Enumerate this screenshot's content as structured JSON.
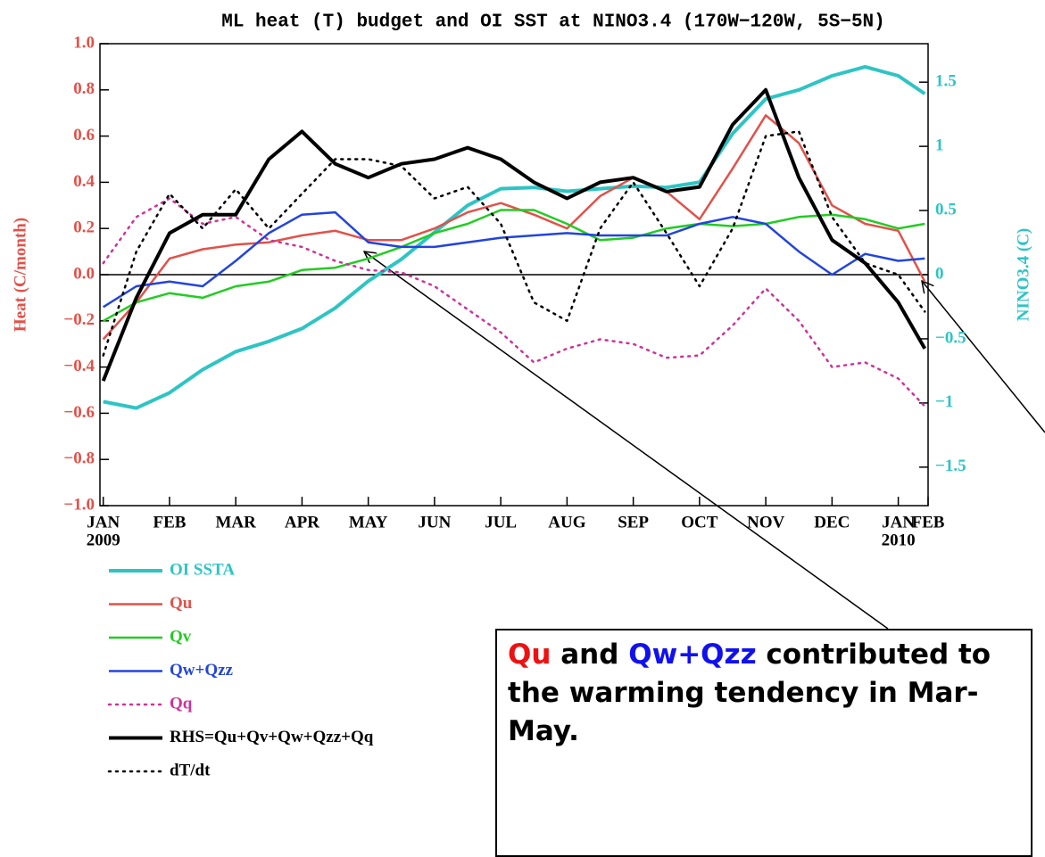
{
  "chart_data": {
    "type": "line",
    "title": "ML heat (T) budget and OI SST at NINO3.4 (170W−120W, 5S−5N)",
    "ylabel": "Heat (C/month)",
    "y2label": "NINO3.4 (C)",
    "x": [
      0,
      0.5,
      1,
      1.5,
      2,
      2.5,
      3,
      3.5,
      4,
      4.5,
      5,
      5.5,
      6,
      6.5,
      7,
      7.5,
      8,
      8.5,
      9,
      9.5,
      10,
      10.5,
      11,
      11.5,
      12,
      12.4
    ],
    "xlim": [
      -0.05,
      12.45
    ],
    "xticks": [
      {
        "value": 0,
        "label": "JAN"
      },
      {
        "value": 1,
        "label": "FEB"
      },
      {
        "value": 2,
        "label": "MAR"
      },
      {
        "value": 3,
        "label": "APR"
      },
      {
        "value": 4,
        "label": "MAY"
      },
      {
        "value": 5,
        "label": "JUN"
      },
      {
        "value": 6,
        "label": "JUL"
      },
      {
        "value": 7,
        "label": "AUG"
      },
      {
        "value": 8,
        "label": "SEP"
      },
      {
        "value": 9,
        "label": "OCT"
      },
      {
        "value": 10,
        "label": "NOV"
      },
      {
        "value": 11,
        "label": "DEC"
      },
      {
        "value": 12,
        "label": "JAN"
      },
      {
        "value": 12.45,
        "label": "FEB"
      }
    ],
    "x_year_labels": [
      {
        "value": 0,
        "label": "2009"
      },
      {
        "value": 12,
        "label": "2010"
      }
    ],
    "ylim": [
      -1,
      1
    ],
    "yticks": [
      {
        "value": 1,
        "label": "1.0"
      },
      {
        "value": 0.8,
        "label": "0.8"
      },
      {
        "value": 0.6,
        "label": "0.6"
      },
      {
        "value": 0.4,
        "label": "0.4"
      },
      {
        "value": 0.2,
        "label": "0.2"
      },
      {
        "value": 0,
        "label": "0.0"
      },
      {
        "value": -0.2,
        "label": "−0.2"
      },
      {
        "value": -0.4,
        "label": "−0.4"
      },
      {
        "value": -0.6,
        "label": "−0.6"
      },
      {
        "value": -0.8,
        "label": "−0.8"
      },
      {
        "value": -1,
        "label": "−1.0"
      }
    ],
    "y2lim": [
      -1.8,
      1.8
    ],
    "y2ticks": [
      1.5,
      1,
      0.5,
      0,
      {
        "value": -0.5,
        "label": "−0.5"
      },
      {
        "value": -1,
        "label": "−1"
      },
      {
        "value": -1.5,
        "label": "−1.5"
      }
    ],
    "hline": 0,
    "legend": "below",
    "series": [
      {
        "name": "OI SSTA",
        "color": "#2ec4c4",
        "width": 4,
        "axis": "y2",
        "values": [
          -0.99,
          -1.04,
          -0.92,
          -0.74,
          -0.6,
          -0.52,
          -0.42,
          -0.26,
          -0.05,
          0.12,
          0.33,
          0.54,
          0.67,
          0.68,
          0.65,
          0.67,
          0.69,
          0.68,
          0.72,
          1.1,
          1.37,
          1.44,
          1.55,
          1.62,
          1.55,
          1.41
        ]
      },
      {
        "name": "Qu",
        "color": "#e0524a",
        "width": 2.5,
        "values": [
          -0.28,
          -0.12,
          0.07,
          0.11,
          0.13,
          0.14,
          0.17,
          0.19,
          0.15,
          0.15,
          0.2,
          0.27,
          0.31,
          0.26,
          0.2,
          0.34,
          0.42,
          0.36,
          0.24,
          0.46,
          0.69,
          0.57,
          0.3,
          0.22,
          0.19,
          -0.03
        ]
      },
      {
        "name": "Qv",
        "color": "#22cc22",
        "width": 2.5,
        "values": [
          -0.2,
          -0.12,
          -0.08,
          -0.1,
          -0.05,
          -0.03,
          0.02,
          0.03,
          0.07,
          0.12,
          0.18,
          0.22,
          0.28,
          0.28,
          0.22,
          0.15,
          0.16,
          0.2,
          0.22,
          0.21,
          0.22,
          0.25,
          0.26,
          0.24,
          0.2,
          0.22
        ]
      },
      {
        "name": "Qw+Qzz",
        "color": "#2244dd",
        "width": 2.5,
        "values": [
          -0.14,
          -0.05,
          -0.03,
          -0.05,
          0.06,
          0.18,
          0.26,
          0.27,
          0.14,
          0.12,
          0.12,
          0.14,
          0.16,
          0.17,
          0.18,
          0.17,
          0.17,
          0.17,
          0.22,
          0.25,
          0.22,
          0.1,
          0,
          0.09,
          0.06,
          0.07
        ]
      },
      {
        "name": "Qq",
        "color": "#cc3399",
        "width": 2.5,
        "dash": "dotted",
        "values": [
          0.05,
          0.25,
          0.33,
          0.22,
          0.25,
          0.15,
          0.12,
          0.06,
          0.02,
          0.01,
          -0.05,
          -0.15,
          -0.25,
          -0.38,
          -0.32,
          -0.28,
          -0.3,
          -0.36,
          -0.35,
          -0.22,
          -0.06,
          -0.2,
          -0.4,
          -0.38,
          -0.45,
          -0.57
        ]
      },
      {
        "name": "RHS=Qu+Qv+Qw+Qzz+Qq",
        "color": "#000000",
        "width": 4,
        "values": [
          -0.46,
          -0.1,
          0.18,
          0.26,
          0.26,
          0.5,
          0.62,
          0.48,
          0.42,
          0.48,
          0.5,
          0.55,
          0.5,
          0.4,
          0.33,
          0.4,
          0.42,
          0.36,
          0.38,
          0.65,
          0.8,
          0.42,
          0.15,
          0.05,
          -0.12,
          -0.32
        ]
      },
      {
        "name": "dT/dt",
        "color": "#000000",
        "width": 2.5,
        "dash": "dotted",
        "values": [
          -0.35,
          0.1,
          0.35,
          0.2,
          0.37,
          0.2,
          0.35,
          0.5,
          0.5,
          0.47,
          0.33,
          0.38,
          0.22,
          -0.12,
          -0.2,
          0.2,
          0.4,
          0.18,
          -0.05,
          0.2,
          0.6,
          0.62,
          0.25,
          0.05,
          0,
          -0.16
        ]
      }
    ],
    "annotation": {
      "parts": [
        {
          "text": "Qu",
          "color": "#ee1111"
        },
        {
          "text": "and",
          "color": "#000000"
        },
        {
          "text": "Qw+Qzz",
          "color": "#1111ee"
        },
        {
          "text": "contributed to the warming tendency in Mar-May.",
          "color": "#000000"
        }
      ]
    }
  }
}
